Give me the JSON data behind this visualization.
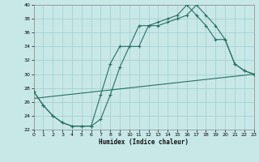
{
  "xlabel": "Humidex (Indice chaleur)",
  "bg_color": "#c8e8e8",
  "grid_color": "#a0cccc",
  "line_color": "#2a6e62",
  "xlim": [
    0,
    23
  ],
  "ylim": [
    22,
    40
  ],
  "xticks": [
    0,
    1,
    2,
    3,
    4,
    5,
    6,
    7,
    8,
    9,
    10,
    11,
    12,
    13,
    14,
    15,
    16,
    17,
    18,
    19,
    20,
    21,
    22,
    23
  ],
  "yticks": [
    22,
    24,
    26,
    28,
    30,
    32,
    34,
    36,
    38,
    40
  ],
  "curve1_x": [
    0,
    1,
    2,
    3,
    4,
    5,
    6,
    7,
    8,
    9,
    10,
    11,
    12,
    13,
    14,
    15,
    16,
    17,
    18,
    19,
    20,
    21,
    22,
    23
  ],
  "curve1_y": [
    27.5,
    25.5,
    24.0,
    23.0,
    22.5,
    22.5,
    22.5,
    23.5,
    27.0,
    31.0,
    34.0,
    34.0,
    37.0,
    37.0,
    37.5,
    38.0,
    38.5,
    40.0,
    38.5,
    37.0,
    35.0,
    31.5,
    30.5,
    30.0
  ],
  "curve2_x": [
    0,
    1,
    2,
    3,
    4,
    5,
    6,
    7,
    8,
    9,
    10,
    11,
    12,
    13,
    14,
    15,
    16,
    17,
    18,
    19,
    20,
    21,
    22,
    23
  ],
  "curve2_y": [
    27.5,
    25.5,
    24.0,
    23.0,
    22.5,
    22.5,
    22.5,
    27.0,
    31.5,
    34.0,
    34.0,
    37.0,
    37.0,
    37.5,
    38.0,
    38.5,
    40.0,
    38.5,
    37.0,
    35.0,
    35.0,
    31.5,
    30.5,
    30.0
  ],
  "line3_x": [
    0,
    23
  ],
  "line3_y": [
    26.5,
    30.0
  ]
}
